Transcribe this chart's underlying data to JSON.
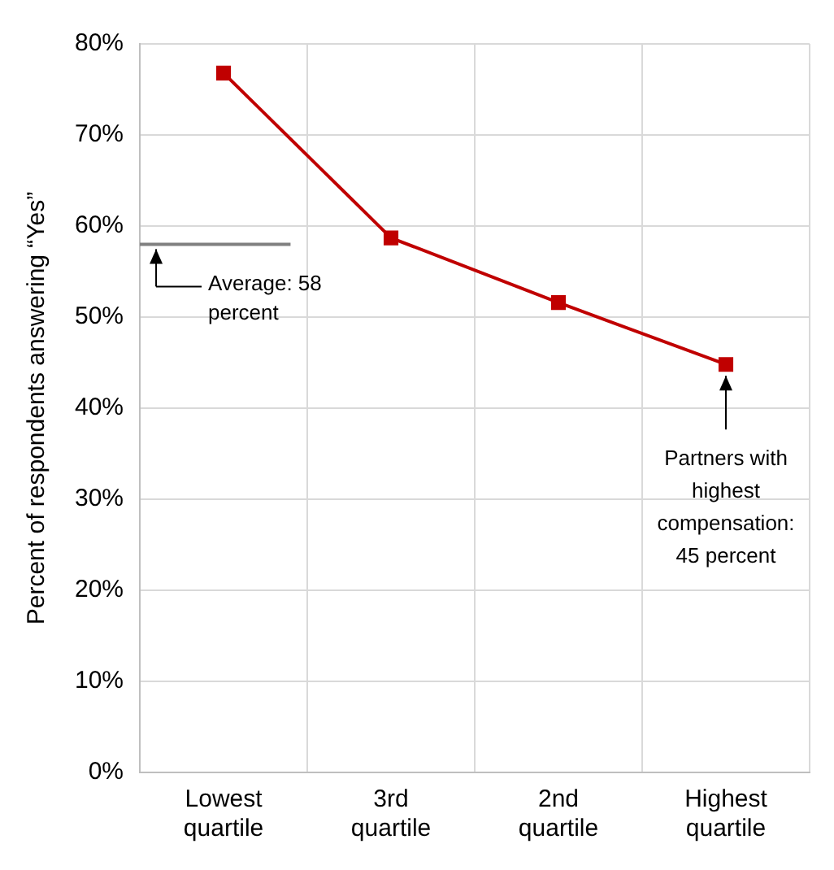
{
  "chart_data": {
    "type": "line",
    "ylabel": "Percent of respondents answering “Yes”",
    "categories": [
      "Lowest quartile",
      "3rd quartile",
      "2nd quartile",
      "Highest quartile"
    ],
    "series": [
      {
        "color": "#c00000",
        "values": [
          76.8,
          58.7,
          51.6,
          44.8
        ]
      }
    ],
    "ylim": [
      0,
      80
    ],
    "yticks": [
      {
        "value": 0,
        "label": "0%"
      },
      {
        "value": 10,
        "label": "10%"
      },
      {
        "value": 20,
        "label": "20%"
      },
      {
        "value": 30,
        "label": "30%"
      },
      {
        "value": 40,
        "label": "40%"
      },
      {
        "value": 50,
        "label": "50%"
      },
      {
        "value": 60,
        "label": "60%"
      },
      {
        "value": 70,
        "label": "70%"
      },
      {
        "value": 80,
        "label": "80%"
      }
    ],
    "ref_lines": [
      {
        "axis": "y",
        "value": 58,
        "label": "Average: 58 percent",
        "color": "#808080"
      }
    ],
    "annotations": [
      {
        "text": "Partners with highest compensation: 45 percent",
        "x": "Highest quartile",
        "y": 44.8
      }
    ],
    "grid": true,
    "marker": "square",
    "legend": false,
    "line_style": "solid"
  }
}
